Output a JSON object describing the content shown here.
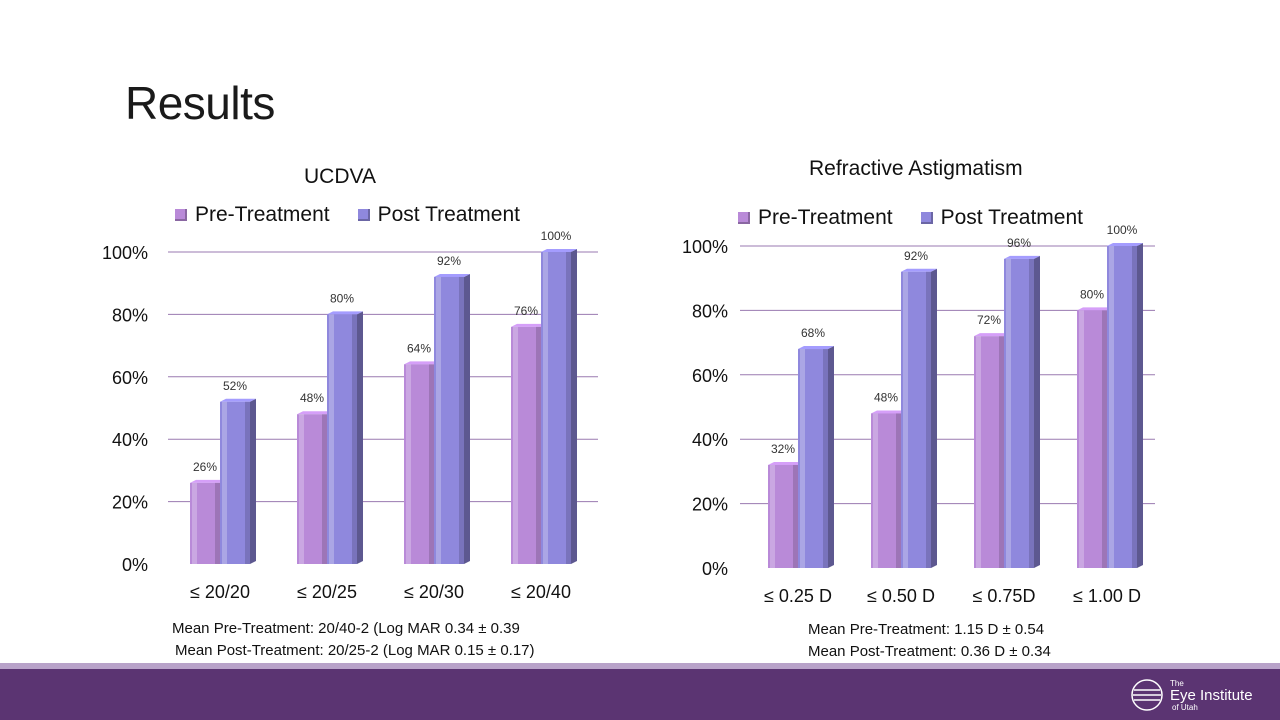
{
  "slide": {
    "title": "Results"
  },
  "logo": {
    "text_line1": "The",
    "text_line2": "Eye Institute",
    "text_line3": "of Utah"
  },
  "colors": {
    "pre": "#b98ad8",
    "post": "#8f88dd",
    "footer": "#5b3472",
    "grid": "#9a7ab0"
  },
  "chart_data": [
    {
      "type": "bar",
      "title": "UCDVA",
      "categories": [
        "≤ 20/20",
        "≤ 20/25",
        "≤ 20/30",
        "≤ 20/40"
      ],
      "series": [
        {
          "name": "Pre-Treatment",
          "values": [
            26,
            48,
            64,
            76
          ],
          "labels": [
            "26%",
            "48%",
            "64%",
            "76%"
          ]
        },
        {
          "name": "Post Treatment",
          "values": [
            52,
            80,
            92,
            100
          ],
          "labels": [
            "52%",
            "80%",
            "92%",
            "100%"
          ]
        }
      ],
      "y_ticks": [
        "0%",
        "20%",
        "40%",
        "60%",
        "80%",
        "100%"
      ],
      "ylim": [
        0,
        100
      ],
      "legend": "top",
      "grid": true,
      "notes": [
        "Mean Pre-Treatment: 20/40-2 (Log MAR 0.34 ± 0.39",
        "Mean Post-Treatment: 20/25-2 (Log MAR 0.15 ± 0.17)"
      ]
    },
    {
      "type": "bar",
      "title": "Refractive Astigmatism",
      "categories": [
        "≤ 0.25 D",
        "≤ 0.50 D",
        "≤ 0.75D",
        "≤ 1.00 D"
      ],
      "series": [
        {
          "name": "Pre-Treatment",
          "values": [
            32,
            48,
            72,
            80
          ],
          "labels": [
            "32%",
            "48%",
            "72%",
            "80%"
          ]
        },
        {
          "name": "Post Treatment",
          "values": [
            68,
            92,
            96,
            100
          ],
          "labels": [
            "68%",
            "92%",
            "96%",
            "100%"
          ]
        }
      ],
      "y_ticks": [
        "0%",
        "20%",
        "40%",
        "60%",
        "80%",
        "100%"
      ],
      "ylim": [
        0,
        100
      ],
      "legend": "top",
      "grid": true,
      "notes": [
        "Mean Pre-Treatment: 1.15 D ± 0.54",
        "Mean Post-Treatment: 0.36 D ± 0.34"
      ]
    }
  ]
}
